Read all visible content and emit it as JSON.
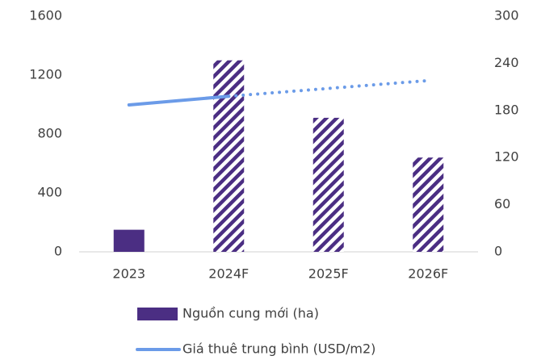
{
  "chart_data": {
    "type": "bar-line",
    "categories": [
      "2023",
      "2024F",
      "2025F",
      "2026F"
    ],
    "forecast_start_index": 1,
    "series": [
      {
        "name": "Nguồn cung mới (ha)",
        "color": "#4b2e83",
        "type": "bar",
        "values": [
          150,
          1300,
          910,
          640
        ]
      },
      {
        "name": "Giá thuê trung bình (USD/m2)",
        "color": "#6b9be8",
        "type": "line",
        "axis": "y2",
        "values": [
          187,
          198,
          208,
          218
        ]
      }
    ],
    "ylim": [
      0,
      1600
    ],
    "yticks": [
      0,
      400,
      800,
      1200,
      1600
    ],
    "y2lim": [
      0,
      300
    ],
    "y2ticks": [
      0,
      60,
      120,
      180,
      240,
      300
    ]
  }
}
